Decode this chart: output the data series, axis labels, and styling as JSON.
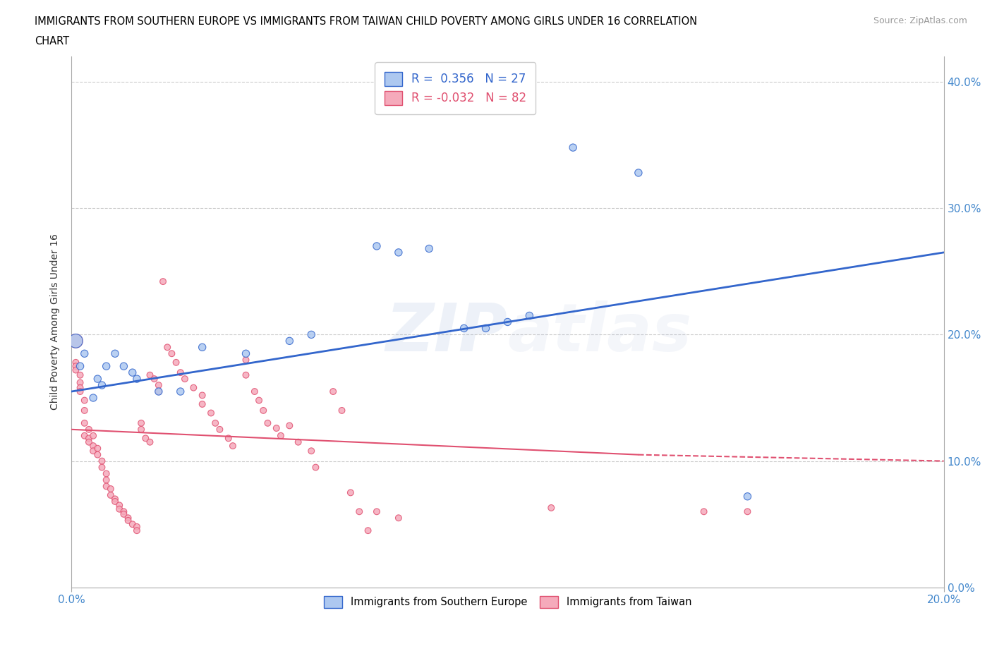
{
  "title_line1": "IMMIGRANTS FROM SOUTHERN EUROPE VS IMMIGRANTS FROM TAIWAN CHILD POVERTY AMONG GIRLS UNDER 16 CORRELATION",
  "title_line2": "CHART",
  "source": "Source: ZipAtlas.com",
  "ylabel": "Child Poverty Among Girls Under 16",
  "xlim": [
    0.0,
    0.2
  ],
  "ylim": [
    0.0,
    0.42
  ],
  "yticks": [
    0.0,
    0.1,
    0.2,
    0.3,
    0.4
  ],
  "xtick_show": [
    0.0,
    0.2
  ],
  "watermark": "ZIPAtlas",
  "r_blue": 0.356,
  "n_blue": 27,
  "r_pink": -0.032,
  "n_pink": 82,
  "blue_color": "#adc8f0",
  "pink_color": "#f5aabb",
  "blue_line_color": "#3366cc",
  "pink_line_color": "#e05070",
  "blue_trend": [
    0.0,
    0.155,
    0.2,
    0.265
  ],
  "pink_trend_solid": [
    0.0,
    0.125,
    0.13,
    0.105
  ],
  "pink_trend_dash": [
    0.13,
    0.105,
    0.2,
    0.1
  ],
  "scatter_blue": [
    [
      0.001,
      0.195
    ],
    [
      0.002,
      0.175
    ],
    [
      0.003,
      0.185
    ],
    [
      0.005,
      0.15
    ],
    [
      0.006,
      0.165
    ],
    [
      0.007,
      0.16
    ],
    [
      0.008,
      0.175
    ],
    [
      0.01,
      0.185
    ],
    [
      0.012,
      0.175
    ],
    [
      0.014,
      0.17
    ],
    [
      0.015,
      0.165
    ],
    [
      0.02,
      0.155
    ],
    [
      0.025,
      0.155
    ],
    [
      0.03,
      0.19
    ],
    [
      0.04,
      0.185
    ],
    [
      0.05,
      0.195
    ],
    [
      0.055,
      0.2
    ],
    [
      0.07,
      0.27
    ],
    [
      0.075,
      0.265
    ],
    [
      0.082,
      0.268
    ],
    [
      0.09,
      0.205
    ],
    [
      0.095,
      0.205
    ],
    [
      0.1,
      0.21
    ],
    [
      0.105,
      0.215
    ],
    [
      0.115,
      0.348
    ],
    [
      0.13,
      0.328
    ],
    [
      0.155,
      0.072
    ]
  ],
  "scatter_pink": [
    [
      0.001,
      0.195
    ],
    [
      0.001,
      0.178
    ],
    [
      0.001,
      0.175
    ],
    [
      0.001,
      0.172
    ],
    [
      0.002,
      0.168
    ],
    [
      0.002,
      0.162
    ],
    [
      0.002,
      0.158
    ],
    [
      0.002,
      0.155
    ],
    [
      0.003,
      0.148
    ],
    [
      0.003,
      0.14
    ],
    [
      0.003,
      0.13
    ],
    [
      0.003,
      0.12
    ],
    [
      0.004,
      0.125
    ],
    [
      0.004,
      0.118
    ],
    [
      0.004,
      0.115
    ],
    [
      0.005,
      0.12
    ],
    [
      0.005,
      0.112
    ],
    [
      0.005,
      0.108
    ],
    [
      0.006,
      0.11
    ],
    [
      0.006,
      0.105
    ],
    [
      0.007,
      0.1
    ],
    [
      0.007,
      0.095
    ],
    [
      0.008,
      0.09
    ],
    [
      0.008,
      0.085
    ],
    [
      0.008,
      0.08
    ],
    [
      0.009,
      0.078
    ],
    [
      0.009,
      0.073
    ],
    [
      0.01,
      0.07
    ],
    [
      0.01,
      0.068
    ],
    [
      0.011,
      0.065
    ],
    [
      0.011,
      0.062
    ],
    [
      0.012,
      0.06
    ],
    [
      0.012,
      0.058
    ],
    [
      0.013,
      0.055
    ],
    [
      0.013,
      0.053
    ],
    [
      0.014,
      0.05
    ],
    [
      0.015,
      0.048
    ],
    [
      0.015,
      0.045
    ],
    [
      0.016,
      0.13
    ],
    [
      0.016,
      0.125
    ],
    [
      0.017,
      0.118
    ],
    [
      0.018,
      0.115
    ],
    [
      0.018,
      0.168
    ],
    [
      0.019,
      0.165
    ],
    [
      0.02,
      0.16
    ],
    [
      0.02,
      0.155
    ],
    [
      0.021,
      0.242
    ],
    [
      0.022,
      0.19
    ],
    [
      0.023,
      0.185
    ],
    [
      0.024,
      0.178
    ],
    [
      0.025,
      0.17
    ],
    [
      0.026,
      0.165
    ],
    [
      0.028,
      0.158
    ],
    [
      0.03,
      0.152
    ],
    [
      0.03,
      0.145
    ],
    [
      0.032,
      0.138
    ],
    [
      0.033,
      0.13
    ],
    [
      0.034,
      0.125
    ],
    [
      0.036,
      0.118
    ],
    [
      0.037,
      0.112
    ],
    [
      0.04,
      0.18
    ],
    [
      0.04,
      0.168
    ],
    [
      0.042,
      0.155
    ],
    [
      0.043,
      0.148
    ],
    [
      0.044,
      0.14
    ],
    [
      0.045,
      0.13
    ],
    [
      0.047,
      0.126
    ],
    [
      0.048,
      0.12
    ],
    [
      0.05,
      0.128
    ],
    [
      0.052,
      0.115
    ],
    [
      0.055,
      0.108
    ],
    [
      0.056,
      0.095
    ],
    [
      0.06,
      0.155
    ],
    [
      0.062,
      0.14
    ],
    [
      0.064,
      0.075
    ],
    [
      0.066,
      0.06
    ],
    [
      0.068,
      0.045
    ],
    [
      0.07,
      0.06
    ],
    [
      0.075,
      0.055
    ],
    [
      0.11,
      0.063
    ],
    [
      0.145,
      0.06
    ],
    [
      0.155,
      0.06
    ]
  ],
  "pink_big_size": 200,
  "blue_dot_size": 55,
  "pink_dot_size": 40
}
